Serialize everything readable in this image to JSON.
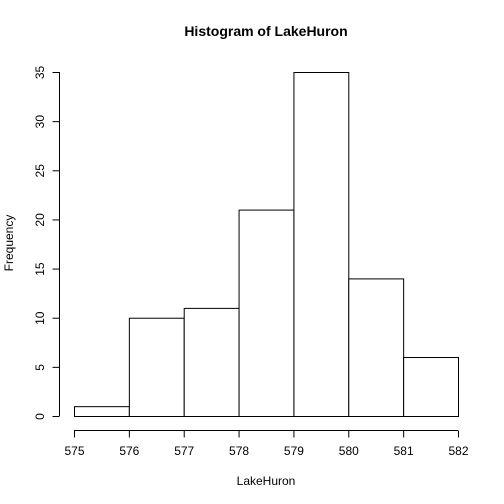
{
  "chart_data": {
    "type": "bar",
    "title": "Histogram of LakeHuron",
    "xlabel": "LakeHuron",
    "ylabel": "Frequency",
    "bin_edges": [
      575,
      576,
      577,
      578,
      579,
      580,
      581,
      582
    ],
    "values": [
      1,
      10,
      11,
      21,
      35,
      14,
      6
    ],
    "xlim": [
      575,
      582
    ],
    "ylim": [
      0,
      35
    ],
    "x_ticks": [
      "575",
      "576",
      "577",
      "578",
      "579",
      "580",
      "581",
      "582"
    ],
    "y_ticks": [
      "0",
      "5",
      "10",
      "15",
      "20",
      "25",
      "30",
      "35"
    ],
    "grid": false,
    "legend": "none",
    "colors": {
      "bar_fill": "#ffffff",
      "bar_stroke": "#000000"
    }
  }
}
